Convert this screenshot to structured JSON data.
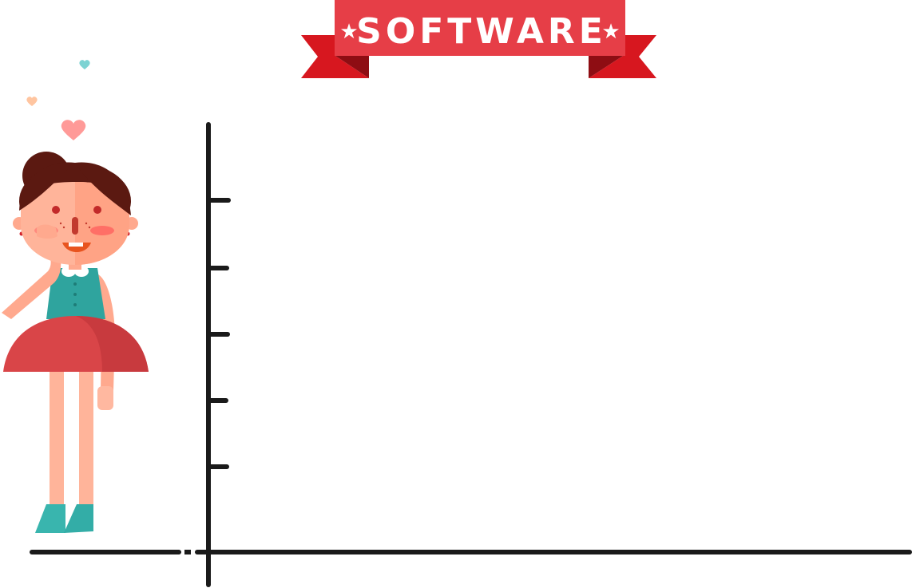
{
  "banner": {
    "title": "SOFTWARE",
    "ribbon_color": "#E63E47",
    "ribbon_dark_color": "#B9141D",
    "text_color": "#FFFFFF",
    "decorations": [
      "star-icon",
      "star-icon"
    ]
  },
  "chart": {
    "axis_color": "#1A1A1A",
    "y_axis_tick_count": 5,
    "content": "empty"
  },
  "character": {
    "description_icon": "girl-illustration",
    "colors": {
      "hair": "#5B1911",
      "skin": "#FFA98E",
      "top": "#2FA49E",
      "skirt": "#D94548",
      "shoes": "#33B3AD"
    }
  },
  "hearts": [
    {
      "icon": "heart-icon",
      "color": "#FF9A98"
    },
    {
      "icon": "heart-icon",
      "color": "#7DD3D3"
    },
    {
      "icon": "heart-icon",
      "color": "#FFC5A0"
    }
  ]
}
